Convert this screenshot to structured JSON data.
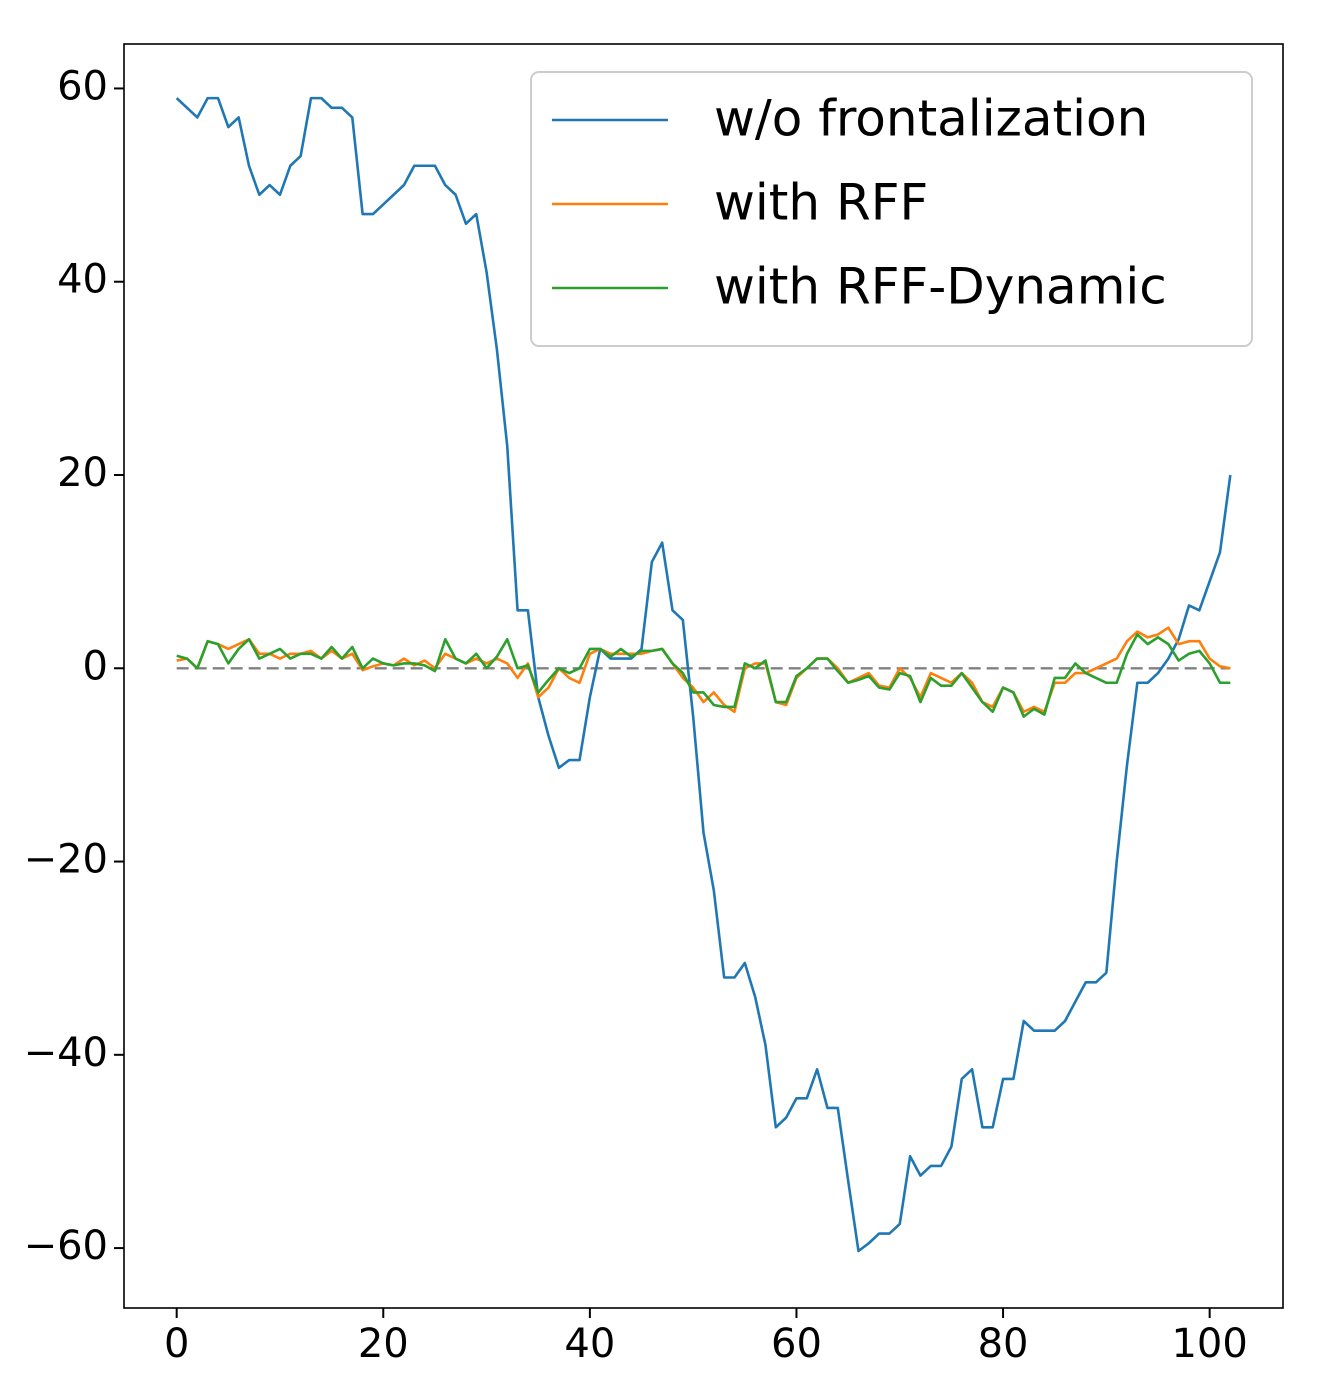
{
  "chart_data": {
    "type": "line",
    "x": [
      0,
      1,
      2,
      3,
      4,
      5,
      6,
      7,
      8,
      9,
      10,
      11,
      12,
      13,
      14,
      15,
      16,
      17,
      18,
      19,
      20,
      21,
      22,
      23,
      24,
      25,
      26,
      27,
      28,
      29,
      30,
      31,
      32,
      33,
      34,
      35,
      36,
      37,
      38,
      39,
      40,
      41,
      42,
      43,
      44,
      45,
      46,
      47,
      48,
      49,
      50,
      51,
      52,
      53,
      54,
      55,
      56,
      57,
      58,
      59,
      60,
      61,
      62,
      63,
      64,
      65,
      66,
      67,
      68,
      69,
      70,
      71,
      72,
      73,
      74,
      75,
      76,
      77,
      78,
      79,
      80,
      81,
      82,
      83,
      84,
      85,
      86,
      87,
      88,
      89,
      90,
      91,
      92,
      93,
      94,
      95,
      96,
      97,
      98,
      99,
      100,
      101,
      102
    ],
    "series": [
      {
        "name": "w/o frontalization",
        "color": "#1f77b4",
        "values": [
          59,
          58,
          57,
          59,
          59,
          56,
          57,
          52,
          49,
          50,
          49,
          52,
          53,
          59,
          59,
          58,
          58,
          57,
          47,
          47,
          48,
          49,
          50,
          52,
          52,
          52,
          50,
          49,
          46,
          47,
          41,
          33,
          23,
          6,
          6,
          -3,
          -7,
          -10.3,
          -9.5,
          -9.5,
          -3,
          2,
          1,
          1,
          1,
          2,
          11,
          13,
          6,
          5,
          -5,
          -17,
          -23,
          -32,
          -32,
          -30.5,
          -34,
          -39,
          -47.5,
          -46.5,
          -44.5,
          -44.5,
          -41.5,
          -45.5,
          -45.5,
          -53,
          -60.3,
          -59.5,
          -58.5,
          -58.5,
          -57.5,
          -50.5,
          -52.5,
          -51.5,
          -51.5,
          -49.5,
          -42.5,
          -41.5,
          -47.5,
          -47.5,
          -42.5,
          -42.5,
          -36.5,
          -37.5,
          -37.5,
          -37.5,
          -36.5,
          -34.5,
          -32.5,
          -32.5,
          -31.5,
          -20,
          -10,
          -1.5,
          -1.5,
          -0.5,
          1,
          3,
          6.5,
          6,
          9,
          12,
          20
        ]
      },
      {
        "name": "with RFF",
        "color": "#ff7f0e",
        "values": [
          0.8,
          1,
          0,
          2.8,
          2.5,
          2,
          2.5,
          3,
          1.5,
          1.5,
          1,
          1.5,
          1.5,
          1.8,
          1,
          1.8,
          1,
          1.5,
          -0.2,
          0.2,
          0.5,
          0.3,
          1,
          0.3,
          0.8,
          0,
          1.5,
          1,
          0.5,
          1,
          0.5,
          1,
          0.5,
          -1,
          0.5,
          -3,
          -2,
          0,
          -1,
          -1.5,
          1.5,
          2,
          1.5,
          1.5,
          1.5,
          1.5,
          1.8,
          2,
          0.5,
          -1,
          -2,
          -3.5,
          -2.5,
          -3.8,
          -4.5,
          0,
          0.5,
          0.5,
          -3.5,
          -3.8,
          -1,
          0,
          1,
          1,
          0,
          -1.5,
          -1,
          -0.5,
          -1.8,
          -2,
          0,
          -1,
          -3,
          -0.5,
          -1,
          -1.5,
          -0.5,
          -1.5,
          -3.5,
          -4,
          -2,
          -2.5,
          -4.5,
          -4,
          -4.5,
          -1.5,
          -1.5,
          -0.5,
          -0.5,
          0,
          0.5,
          1,
          2.8,
          3.8,
          3.2,
          3.5,
          4.2,
          2.5,
          2.8,
          2.8,
          1,
          0.2,
          0
        ]
      },
      {
        "name": "with RFF-Dynamic",
        "color": "#2ca02c",
        "values": [
          1.3,
          1,
          0,
          2.8,
          2.5,
          0.5,
          2,
          3,
          1,
          1.5,
          2,
          1,
          1.5,
          1.5,
          1,
          2.2,
          1,
          2.2,
          0,
          1,
          0.5,
          0.3,
          0.5,
          0.5,
          0.3,
          -0.3,
          3,
          1,
          0.5,
          1.5,
          0,
          1.2,
          3,
          0,
          0.3,
          -2.5,
          -1.2,
          0,
          -0.5,
          0,
          2,
          2,
          1.2,
          2,
          1.2,
          1.8,
          1.8,
          2,
          0.5,
          -0.5,
          -2.5,
          -2.5,
          -3.8,
          -4,
          -4,
          0.5,
          0,
          0.8,
          -3.5,
          -3.5,
          -0.8,
          0,
          1,
          1,
          -0.3,
          -1.5,
          -1.2,
          -0.8,
          -2,
          -2.2,
          -0.5,
          -0.8,
          -3.5,
          -1,
          -1.8,
          -1.8,
          -0.5,
          -2,
          -3.5,
          -4.5,
          -2,
          -2.5,
          -5,
          -4.2,
          -4.8,
          -1,
          -1,
          0.5,
          -0.5,
          -1,
          -1.5,
          -1.5,
          1.5,
          3.5,
          2.5,
          3.2,
          2.5,
          0.8,
          1.5,
          1.8,
          0.5,
          -1.5,
          -1.5
        ]
      }
    ],
    "hline": {
      "y": 0,
      "color": "#808080",
      "style": "dashed"
    },
    "xlim": [
      -5.1,
      107.1
    ],
    "ylim": [
      -66.2,
      64.6
    ],
    "xticks": [
      0,
      20,
      40,
      60,
      80,
      100
    ],
    "yticks": [
      {
        "value": -60,
        "label": "−60"
      },
      {
        "value": -40,
        "label": "−40"
      },
      {
        "value": -20,
        "label": "−20"
      },
      0,
      20,
      40,
      60
    ],
    "legend": "upper right",
    "grid": false
  }
}
